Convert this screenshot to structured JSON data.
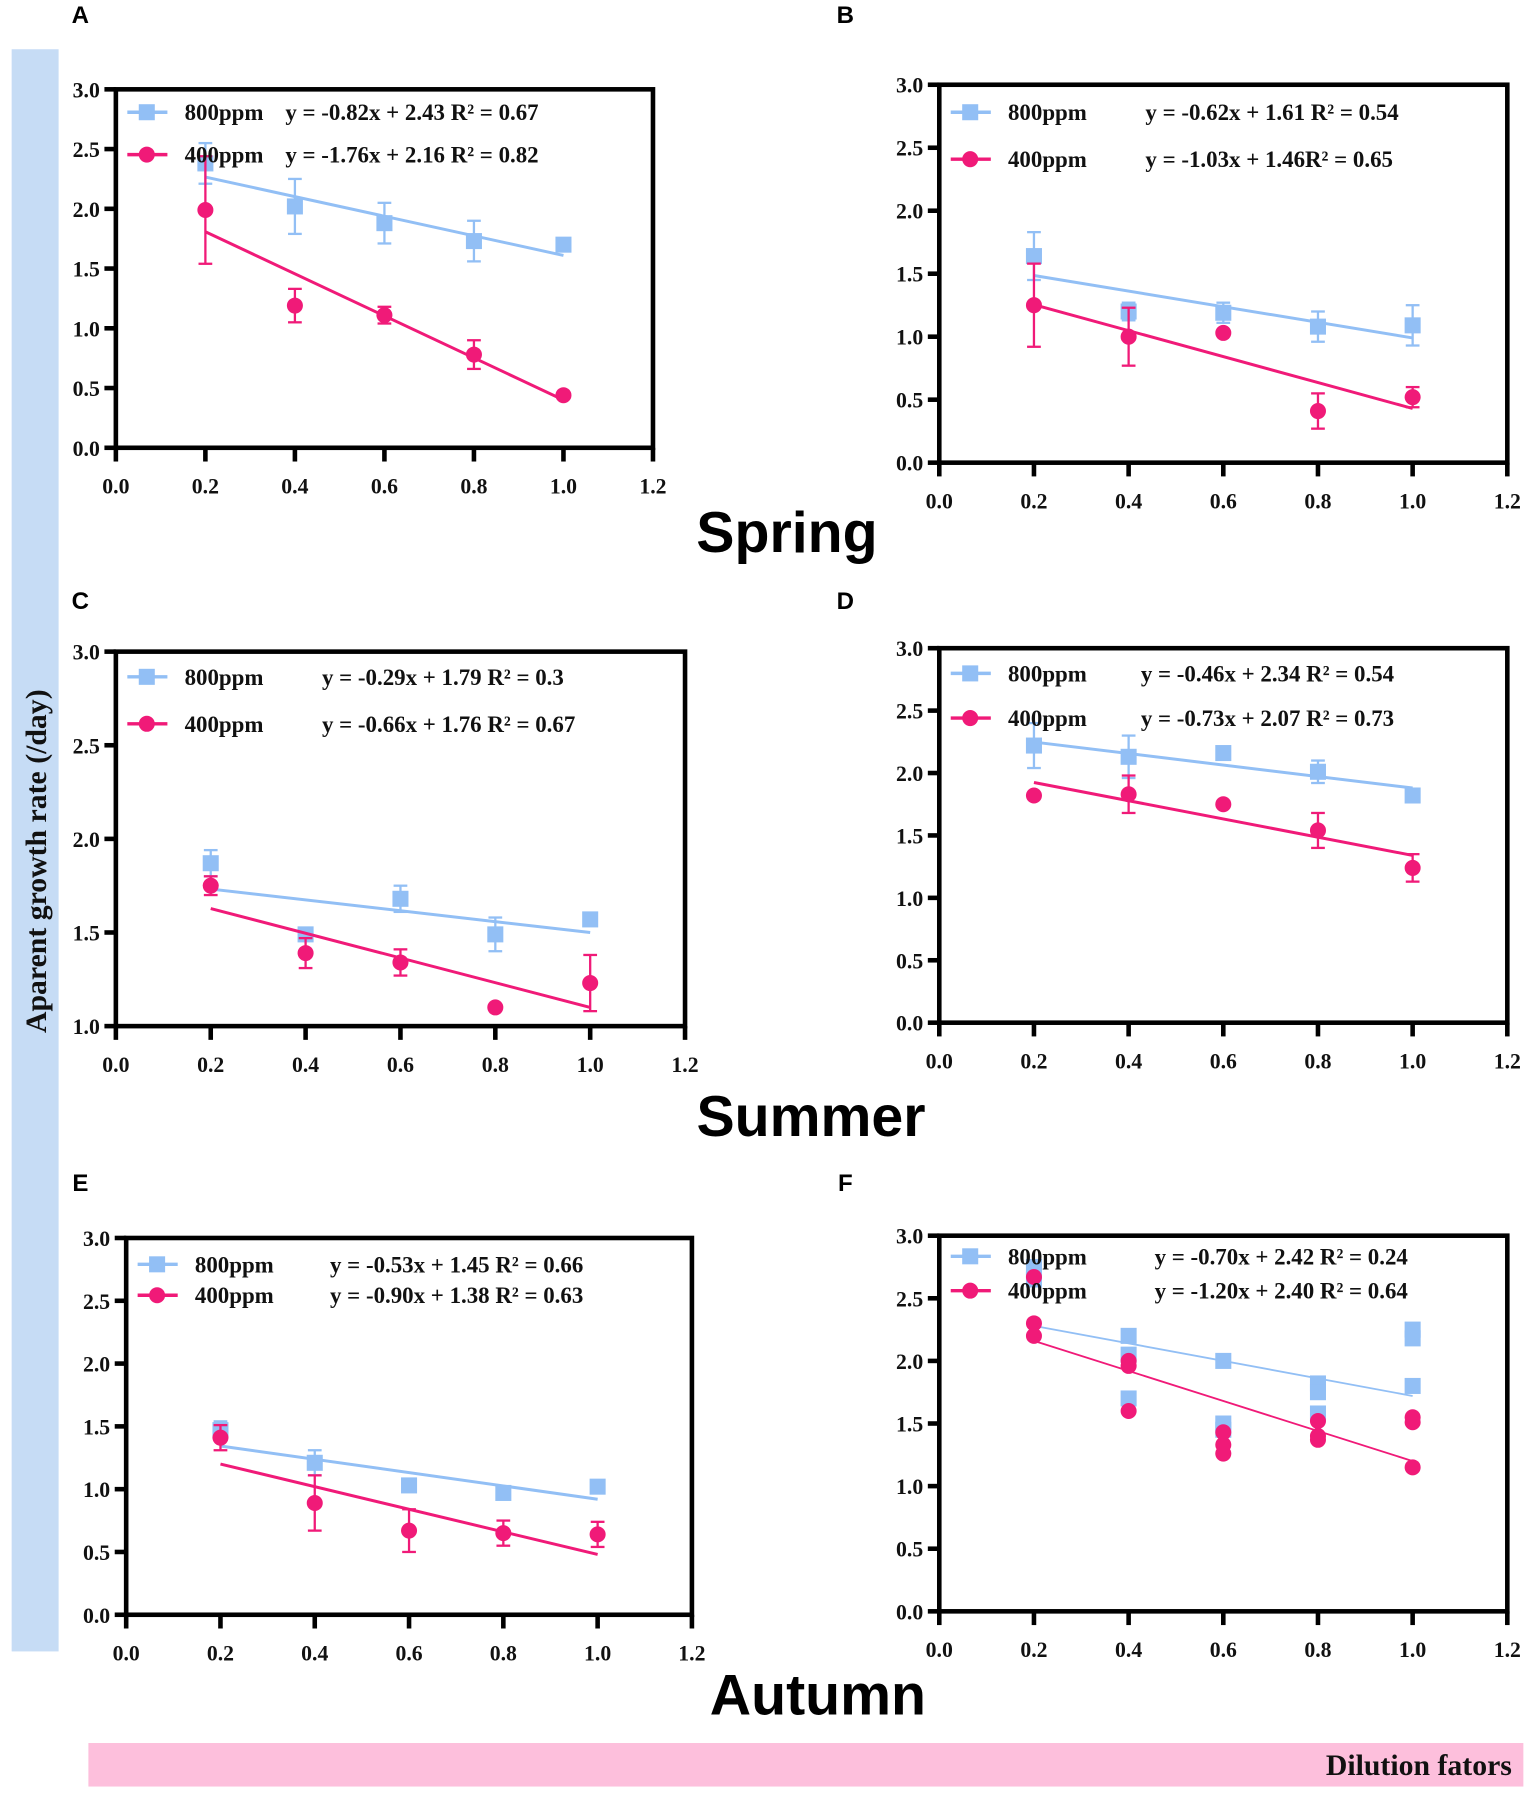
{
  "colors": {
    "s800": "#92bff5",
    "s400": "#f01a78",
    "ybar": "#c6dcf5",
    "xbar": "#fdbfdc"
  },
  "ylabel": "Aparent growth rate (/day)",
  "xlabel": "Dilution fators",
  "seasons": [
    "Spring",
    "Summer",
    "Autumn"
  ],
  "chart_data": [
    {
      "panel": "A",
      "type": "scatter",
      "x": [
        0.2,
        0.4,
        0.6,
        0.8,
        1.0
      ],
      "xlim": [
        0,
        1.2
      ],
      "ylim": [
        0,
        3
      ],
      "xticks": [
        "0.0",
        "0.2",
        "0.4",
        "0.6",
        "0.8",
        "1.0",
        "1.2"
      ],
      "yticks": [
        "0.0",
        "0.5",
        "1.0",
        "1.5",
        "2.0",
        "2.5",
        "3.0"
      ],
      "series": [
        {
          "name": "800ppm",
          "equation": "y = -0.82x + 2.43 R² = 0.67",
          "slope": -0.82,
          "intercept": 2.43,
          "values": [
            2.38,
            2.02,
            1.88,
            1.73,
            1.7
          ],
          "err": [
            0.17,
            0.23,
            0.17,
            0.17,
            0
          ]
        },
        {
          "name": "400ppm",
          "equation": "y = -1.76x + 2.16 R² = 0.82",
          "slope": -1.76,
          "intercept": 2.16,
          "values": [
            1.99,
            1.19,
            1.11,
            0.78,
            0.44
          ],
          "err": [
            0.45,
            0.14,
            0.07,
            0.12,
            0
          ]
        }
      ]
    },
    {
      "panel": "B",
      "type": "scatter",
      "x": [
        0.2,
        0.4,
        0.6,
        0.8,
        1.0
      ],
      "xlim": [
        0,
        1.2
      ],
      "ylim": [
        0,
        3
      ],
      "xticks": [
        "0.0",
        "0.2",
        "0.4",
        "0.6",
        "0.8",
        "1.0",
        "1.2"
      ],
      "yticks": [
        "0.0",
        "0.5",
        "1.0",
        "1.5",
        "2.0",
        "2.5",
        "3.0"
      ],
      "series": [
        {
          "name": "800ppm",
          "equation": "y = -0.62x + 1.61 R² = 0.54",
          "slope": -0.62,
          "intercept": 1.61,
          "values": [
            1.64,
            1.2,
            1.19,
            1.08,
            1.09
          ],
          "err": [
            0.19,
            0.07,
            0.08,
            0.12,
            0.16
          ]
        },
        {
          "name": "400ppm",
          "equation": "y = -1.03x + 1.46R² = 0.65",
          "slope": -1.03,
          "intercept": 1.46,
          "values": [
            1.25,
            1.0,
            1.03,
            0.41,
            0.52
          ],
          "err": [
            0.33,
            0.23,
            0,
            0.14,
            0.08
          ]
        }
      ]
    },
    {
      "panel": "C",
      "type": "scatter",
      "x": [
        0.2,
        0.4,
        0.6,
        0.8,
        1.0
      ],
      "xlim": [
        0,
        1.2
      ],
      "ylim": [
        1,
        3
      ],
      "xticks": [
        "0.0",
        "0.2",
        "0.4",
        "0.6",
        "0.8",
        "1.0",
        "1.2"
      ],
      "yticks": [
        "1.0",
        "1.5",
        "2.0",
        "2.5",
        "3.0"
      ],
      "series": [
        {
          "name": "800ppm",
          "equation": "y = -0.29x + 1.79 R² = 0.3",
          "slope": -0.29,
          "intercept": 1.79,
          "values": [
            1.87,
            1.49,
            1.68,
            1.49,
            1.57
          ],
          "err": [
            0.07,
            0,
            0.07,
            0.09,
            0
          ]
        },
        {
          "name": "400ppm",
          "equation": "y = -0.66x + 1.76 R² = 0.67",
          "slope": -0.66,
          "intercept": 1.76,
          "values": [
            1.75,
            1.39,
            1.34,
            1.1,
            1.23
          ],
          "err": [
            0.05,
            0.08,
            0.07,
            0,
            0.15
          ]
        }
      ]
    },
    {
      "panel": "D",
      "type": "scatter",
      "x": [
        0.2,
        0.4,
        0.6,
        0.8,
        1.0
      ],
      "xlim": [
        0,
        1.2
      ],
      "ylim": [
        0,
        3
      ],
      "xticks": [
        "0.0",
        "0.2",
        "0.4",
        "0.6",
        "0.8",
        "1.0",
        "1.2"
      ],
      "yticks": [
        "0.0",
        "0.5",
        "1.0",
        "1.5",
        "2.0",
        "2.5",
        "3.0"
      ],
      "series": [
        {
          "name": "800ppm",
          "equation": "y = -0.46x + 2.34 R² = 0.54",
          "slope": -0.46,
          "intercept": 2.34,
          "values": [
            2.22,
            2.13,
            2.16,
            2.01,
            1.82
          ],
          "err": [
            0.18,
            0.17,
            0.05,
            0.09,
            0
          ]
        },
        {
          "name": "400ppm",
          "equation": "y = -0.73x + 2.07 R² = 0.73",
          "slope": -0.73,
          "intercept": 2.07,
          "values": [
            1.82,
            1.83,
            1.75,
            1.54,
            1.24
          ],
          "err": [
            0,
            0.15,
            0,
            0.14,
            0.11
          ]
        }
      ]
    },
    {
      "panel": "E",
      "type": "scatter",
      "x": [
        0.2,
        0.4,
        0.6,
        0.8,
        1.0
      ],
      "xlim": [
        0,
        1.2
      ],
      "ylim": [
        0,
        3
      ],
      "xticks": [
        "0.0",
        "0.2",
        "0.4",
        "0.6",
        "0.8",
        "1.0",
        "1.2"
      ],
      "yticks": [
        "0.0",
        "0.5",
        "1.0",
        "1.5",
        "2.0",
        "2.5",
        "3.0"
      ],
      "series": [
        {
          "name": "800ppm",
          "equation": "y = -0.53x + 1.45 R² = 0.66",
          "slope": -0.53,
          "intercept": 1.45,
          "values": [
            1.47,
            1.21,
            1.03,
            0.97,
            1.02
          ],
          "err": [
            0.07,
            0.1,
            0,
            0,
            0.05
          ]
        },
        {
          "name": "400ppm",
          "equation": "y = -0.90x + 1.38 R² = 0.63",
          "slope": -0.9,
          "intercept": 1.38,
          "values": [
            1.41,
            0.89,
            0.67,
            0.65,
            0.64
          ],
          "err": [
            0.1,
            0.22,
            0.17,
            0.1,
            0.1
          ]
        }
      ]
    },
    {
      "panel": "F",
      "type": "scatter",
      "x": [
        0.2,
        0.4,
        0.6,
        0.8,
        1.0
      ],
      "xlim": [
        0,
        1.2
      ],
      "ylim": [
        0,
        3
      ],
      "xticks": [
        "0.0",
        "0.2",
        "0.4",
        "0.6",
        "0.8",
        "1.0",
        "1.2"
      ],
      "yticks": [
        "0.0",
        "0.5",
        "1.0",
        "1.5",
        "2.0",
        "2.5",
        "3.0"
      ],
      "series": [
        {
          "name": "800ppm",
          "equation": "y = -0.70x + 2.42 R² = 0.24",
          "slope": -0.7,
          "intercept": 2.42,
          "replicates": [
            [
              2.75,
              2.65
            ],
            [
              2.2,
              2.05,
              1.7
            ],
            [
              2.0,
              1.5,
              1.45
            ],
            [
              1.82,
              1.75,
              1.58
            ],
            [
              2.25,
              2.18,
              1.8
            ]
          ]
        },
        {
          "name": "400ppm",
          "equation": "y = -1.20x + 2.40 R² = 0.64",
          "slope": -1.2,
          "intercept": 2.4,
          "replicates": [
            [
              2.67,
              2.3,
              2.2
            ],
            [
              2.0,
              1.96,
              1.6
            ],
            [
              1.43,
              1.33,
              1.26
            ],
            [
              1.52,
              1.4,
              1.37
            ],
            [
              1.55,
              1.51,
              1.15
            ]
          ]
        }
      ]
    }
  ]
}
